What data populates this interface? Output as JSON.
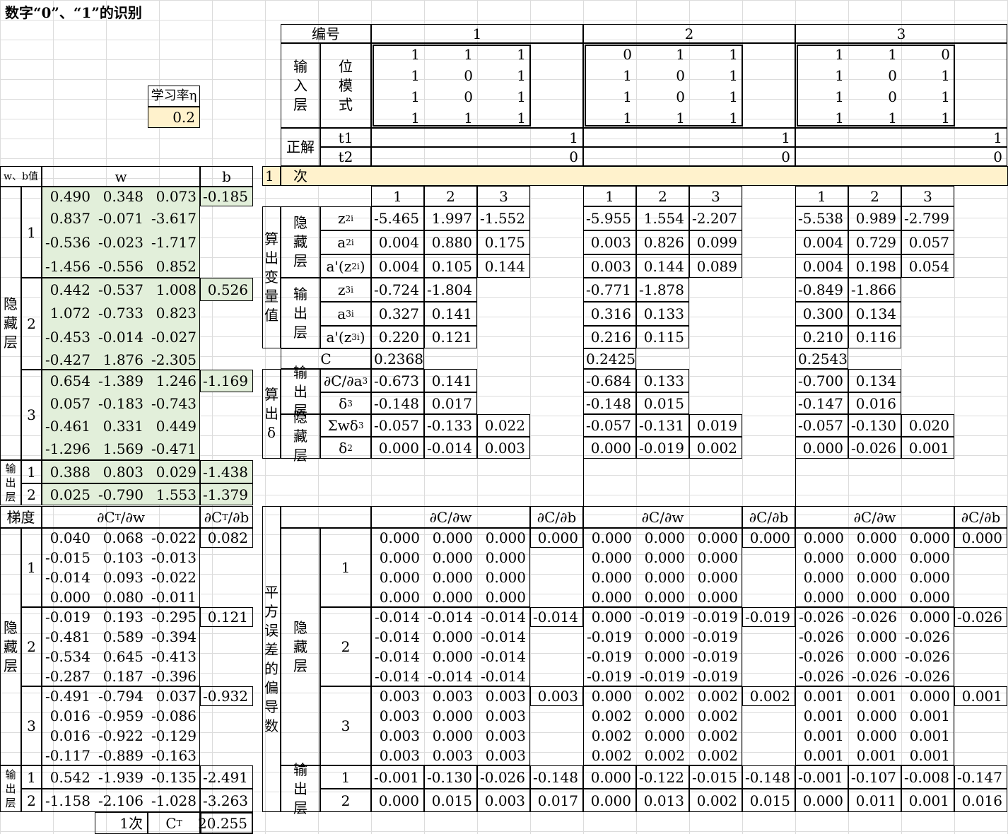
{
  "title": "数字“0”、“1”的识别",
  "learning_rate": {
    "label": "学习率η",
    "value": "0.2"
  },
  "left_header": {
    "wb": "w、b值",
    "w": "w",
    "b": "b"
  },
  "layer_labels": {
    "hidden": "隐藏层",
    "output": "输出层",
    "gradient": "梯度"
  },
  "hidden_weights": [
    {
      "unit": "1",
      "w": [
        [
          "0.490",
          "0.348",
          "0.073"
        ],
        [
          "0.837",
          "-0.071",
          "-3.617"
        ],
        [
          "-0.536",
          "-0.023",
          "-1.717"
        ],
        [
          "-1.456",
          "-0.556",
          "0.852"
        ]
      ],
      "b": "-0.185"
    },
    {
      "unit": "2",
      "w": [
        [
          "0.442",
          "-0.537",
          "1.008"
        ],
        [
          "1.072",
          "-0.733",
          "0.823"
        ],
        [
          "-0.453",
          "-0.014",
          "-0.027"
        ],
        [
          "-0.427",
          "1.876",
          "-2.305"
        ]
      ],
      "b": "0.526"
    },
    {
      "unit": "3",
      "w": [
        [
          "0.654",
          "-1.389",
          "1.246"
        ],
        [
          "0.057",
          "-0.183",
          "-0.743"
        ],
        [
          "-0.461",
          "0.331",
          "0.449"
        ],
        [
          "-1.296",
          "1.569",
          "-0.471"
        ]
      ],
      "b": "-1.169"
    }
  ],
  "output_weights": [
    {
      "unit": "1",
      "w": [
        "0.388",
        "0.803",
        "0.029"
      ],
      "b": "-1.438"
    },
    {
      "unit": "2",
      "w": [
        "0.025",
        "-0.790",
        "1.553"
      ],
      "b": "-1.379"
    }
  ],
  "grad_header": {
    "dw": "∂C",
    "dw_sub": "T",
    "dw_tail": "/∂w",
    "db": "∂C",
    "db_sub": "T",
    "db_tail": "/∂b"
  },
  "hidden_grads": [
    {
      "unit": "1",
      "w": [
        [
          "0.040",
          "0.068",
          "-0.022"
        ],
        [
          "-0.015",
          "0.103",
          "-0.013"
        ],
        [
          "-0.014",
          "0.093",
          "-0.022"
        ],
        [
          "0.000",
          "0.080",
          "-0.011"
        ]
      ],
      "b": "0.082"
    },
    {
      "unit": "2",
      "w": [
        [
          "-0.019",
          "0.193",
          "-0.295"
        ],
        [
          "-0.481",
          "0.589",
          "-0.394"
        ],
        [
          "-0.534",
          "0.645",
          "-0.413"
        ],
        [
          "-0.287",
          "0.187",
          "-0.396"
        ]
      ],
      "b": "0.121"
    },
    {
      "unit": "3",
      "w": [
        [
          "-0.491",
          "-0.794",
          "0.037"
        ],
        [
          "0.016",
          "-0.959",
          "-0.086"
        ],
        [
          "0.016",
          "-0.922",
          "-0.129"
        ],
        [
          "-0.117",
          "-0.889",
          "-0.163"
        ]
      ],
      "b": "-0.932"
    }
  ],
  "output_grads": [
    {
      "unit": "1",
      "w": [
        "0.542",
        "-1.939",
        "-0.135"
      ],
      "b": "-2.491"
    },
    {
      "unit": "2",
      "w": [
        "-1.158",
        "-2.106",
        "-1.028"
      ],
      "b": "-3.263"
    }
  ],
  "cost_total": {
    "iter": "1次",
    "label": "C",
    "label_sub": "T",
    "value": "20.255"
  },
  "right": {
    "id_label": "编号",
    "input_layer": "输入层",
    "bit_pattern": "位模式",
    "answer": "正解",
    "t1": "t1",
    "t2": "t2",
    "iter_num": "1",
    "iter_label": "次",
    "calc_vars": "算出变量值",
    "calc_delta": "算出δ",
    "hidden": "隐藏层",
    "output": "输出层",
    "C": "C",
    "sq_err": "平方误差的偏导数",
    "dCdw": "∂C/∂w",
    "dCdb": "∂C/∂b"
  },
  "samples": [
    {
      "id": "1",
      "bits": [
        [
          "1",
          "1",
          "1"
        ],
        [
          "1",
          "0",
          "1"
        ],
        [
          "1",
          "0",
          "1"
        ],
        [
          "1",
          "1",
          "1"
        ]
      ],
      "t1": "1",
      "t2": "0",
      "z2": [
        "-5.465",
        "1.997",
        "-1.552"
      ],
      "a2": [
        "0.004",
        "0.880",
        "0.175"
      ],
      "ad2": [
        "0.004",
        "0.105",
        "0.144"
      ],
      "z3": [
        "-0.724",
        "-1.804"
      ],
      "a3": [
        "0.327",
        "0.141"
      ],
      "ad3": [
        "0.220",
        "0.121"
      ],
      "C": "0.2368",
      "dCda3": [
        "-0.673",
        "0.141"
      ],
      "d3": [
        "-0.148",
        "0.017"
      ],
      "swd3": [
        "-0.057",
        "-0.133",
        "0.022"
      ],
      "d2": [
        "0.000",
        "-0.014",
        "0.003"
      ],
      "hw": [
        {
          "w": [
            [
              "0.000",
              "0.000",
              "0.000"
            ],
            [
              "0.000",
              "0.000",
              "0.000"
            ],
            [
              "0.000",
              "0.000",
              "0.000"
            ],
            [
              "0.000",
              "0.000",
              "0.000"
            ]
          ],
          "b": "0.000"
        },
        {
          "w": [
            [
              "-0.014",
              "-0.014",
              "-0.014"
            ],
            [
              "-0.014",
              "0.000",
              "-0.014"
            ],
            [
              "-0.014",
              "0.000",
              "-0.014"
            ],
            [
              "-0.014",
              "-0.014",
              "-0.014"
            ]
          ],
          "b": "-0.014"
        },
        {
          "w": [
            [
              "0.003",
              "0.003",
              "0.003"
            ],
            [
              "0.003",
              "0.000",
              "0.003"
            ],
            [
              "0.003",
              "0.000",
              "0.003"
            ],
            [
              "0.003",
              "0.003",
              "0.003"
            ]
          ],
          "b": "0.003"
        }
      ],
      "ow": [
        {
          "w": [
            "-0.001",
            "-0.130",
            "-0.026"
          ],
          "b": "-0.148"
        },
        {
          "w": [
            "0.000",
            "0.015",
            "0.003"
          ],
          "b": "0.017"
        }
      ]
    },
    {
      "id": "2",
      "bits": [
        [
          "0",
          "1",
          "1"
        ],
        [
          "1",
          "0",
          "1"
        ],
        [
          "1",
          "0",
          "1"
        ],
        [
          "1",
          "1",
          "1"
        ]
      ],
      "t1": "1",
      "t2": "0",
      "z2": [
        "-5.955",
        "1.554",
        "-2.207"
      ],
      "a2": [
        "0.003",
        "0.826",
        "0.099"
      ],
      "ad2": [
        "0.003",
        "0.144",
        "0.089"
      ],
      "z3": [
        "-0.771",
        "-1.878"
      ],
      "a3": [
        "0.316",
        "0.133"
      ],
      "ad3": [
        "0.216",
        "0.115"
      ],
      "C": "0.2425",
      "dCda3": [
        "-0.684",
        "0.133"
      ],
      "d3": [
        "-0.148",
        "0.015"
      ],
      "swd3": [
        "-0.057",
        "-0.131",
        "0.019"
      ],
      "d2": [
        "0.000",
        "-0.019",
        "0.002"
      ],
      "hw": [
        {
          "w": [
            [
              "0.000",
              "0.000",
              "0.000"
            ],
            [
              "0.000",
              "0.000",
              "0.000"
            ],
            [
              "0.000",
              "0.000",
              "0.000"
            ],
            [
              "0.000",
              "0.000",
              "0.000"
            ]
          ],
          "b": "0.000"
        },
        {
          "w": [
            [
              "0.000",
              "-0.019",
              "-0.019"
            ],
            [
              "-0.019",
              "0.000",
              "-0.019"
            ],
            [
              "-0.019",
              "0.000",
              "-0.019"
            ],
            [
              "-0.019",
              "-0.019",
              "-0.019"
            ]
          ],
          "b": "-0.019"
        },
        {
          "w": [
            [
              "0.000",
              "0.002",
              "0.002"
            ],
            [
              "0.002",
              "0.000",
              "0.002"
            ],
            [
              "0.002",
              "0.000",
              "0.002"
            ],
            [
              "0.002",
              "0.002",
              "0.002"
            ]
          ],
          "b": "0.002"
        }
      ],
      "ow": [
        {
          "w": [
            "0.000",
            "-0.122",
            "-0.015"
          ],
          "b": "-0.148"
        },
        {
          "w": [
            "0.000",
            "0.013",
            "0.002"
          ],
          "b": "0.015"
        }
      ]
    },
    {
      "id": "3",
      "bits": [
        [
          "1",
          "1",
          "0"
        ],
        [
          "1",
          "0",
          "1"
        ],
        [
          "1",
          "0",
          "1"
        ],
        [
          "1",
          "1",
          "1"
        ]
      ],
      "t1": "1",
      "t2": "0",
      "z2": [
        "-5.538",
        "0.989",
        "-2.799"
      ],
      "a2": [
        "0.004",
        "0.729",
        "0.057"
      ],
      "ad2": [
        "0.004",
        "0.198",
        "0.054"
      ],
      "z3": [
        "-0.849",
        "-1.866"
      ],
      "a3": [
        "0.300",
        "0.134"
      ],
      "ad3": [
        "0.210",
        "0.116"
      ],
      "C": "0.2543",
      "dCda3": [
        "-0.700",
        "0.134"
      ],
      "d3": [
        "-0.147",
        "0.016"
      ],
      "swd3": [
        "-0.057",
        "-0.130",
        "0.020"
      ],
      "d2": [
        "0.000",
        "-0.026",
        "0.001"
      ],
      "hw": [
        {
          "w": [
            [
              "0.000",
              "0.000",
              "0.000"
            ],
            [
              "0.000",
              "0.000",
              "0.000"
            ],
            [
              "0.000",
              "0.000",
              "0.000"
            ],
            [
              "0.000",
              "0.000",
              "0.000"
            ]
          ],
          "b": "0.000"
        },
        {
          "w": [
            [
              "-0.026",
              "-0.026",
              "0.000"
            ],
            [
              "-0.026",
              "0.000",
              "-0.026"
            ],
            [
              "-0.026",
              "0.000",
              "-0.026"
            ],
            [
              "-0.026",
              "-0.026",
              "-0.026"
            ]
          ],
          "b": "-0.026"
        },
        {
          "w": [
            [
              "0.001",
              "0.001",
              "0.000"
            ],
            [
              "0.001",
              "0.000",
              "0.001"
            ],
            [
              "0.001",
              "0.000",
              "0.001"
            ],
            [
              "0.001",
              "0.001",
              "0.001"
            ]
          ],
          "b": "0.001"
        }
      ],
      "ow": [
        {
          "w": [
            "-0.001",
            "-0.107",
            "-0.008"
          ],
          "b": "-0.147"
        },
        {
          "w": [
            "0.000",
            "0.011",
            "0.001"
          ],
          "b": "0.016"
        }
      ]
    }
  ]
}
